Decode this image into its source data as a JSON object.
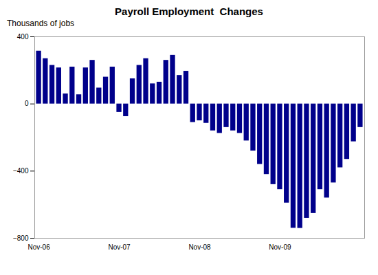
{
  "chart_data": {
    "type": "bar",
    "title": "Payroll Employment  Changes",
    "ylabel": "Thousands of jobs",
    "categories": [
      "Nov-06",
      null,
      null,
      null,
      null,
      null,
      null,
      null,
      null,
      null,
      null,
      null,
      "Nov-07",
      null,
      null,
      null,
      null,
      null,
      null,
      null,
      null,
      null,
      null,
      null,
      "Nov-08",
      null,
      null,
      null,
      null,
      null,
      null,
      null,
      null,
      null,
      null,
      null,
      "Nov-09",
      null,
      null,
      null,
      null,
      null,
      null,
      null,
      null,
      null,
      null,
      null,
      null
    ],
    "values": [
      315,
      270,
      230,
      215,
      60,
      220,
      55,
      215,
      260,
      95,
      160,
      220,
      -50,
      -75,
      150,
      230,
      270,
      120,
      130,
      260,
      290,
      170,
      195,
      -110,
      -100,
      -115,
      -160,
      -175,
      -140,
      -160,
      -175,
      -220,
      -280,
      -360,
      -420,
      -480,
      -510,
      -590,
      -740,
      -741,
      -681,
      -652,
      -510,
      -560,
      -470,
      -380,
      -330,
      -225,
      -140
    ],
    "color": "#00008B",
    "ylim": [
      -800,
      400
    ],
    "yticks": [
      -800,
      -400,
      0,
      400
    ],
    "grid": false
  }
}
